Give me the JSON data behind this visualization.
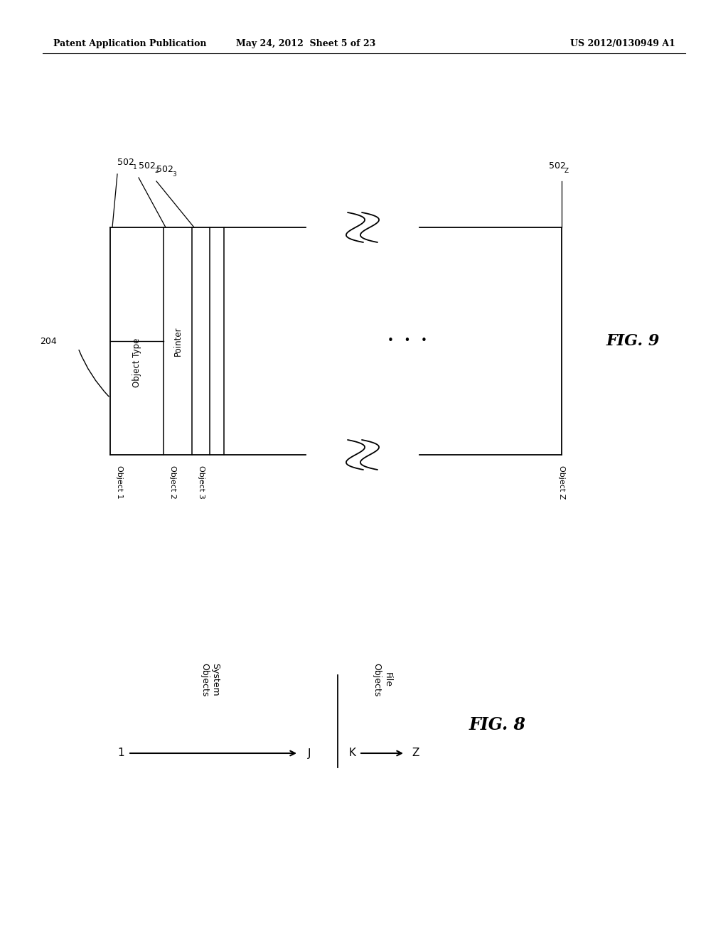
{
  "header_left": "Patent Application Publication",
  "header_center": "May 24, 2012  Sheet 5 of 23",
  "header_right": "US 2012/0130949 A1",
  "fig9_label": "FIG. 9",
  "fig8_label": "FIG. 8",
  "background_color": "#ffffff",
  "text_color": "#000000",
  "fig9": {
    "ref_204": "204",
    "col1_label": "Object Type",
    "col2_label": "Pointer",
    "row_labels": [
      "Object 1",
      "Object 2",
      "Object 3",
      "Object Z"
    ]
  },
  "fig8": {
    "arrow1_label": "System\nObjects",
    "arrow2_label": "File\nObjects",
    "start1": "1",
    "end1": "J",
    "start2": "K",
    "end2": "Z"
  }
}
